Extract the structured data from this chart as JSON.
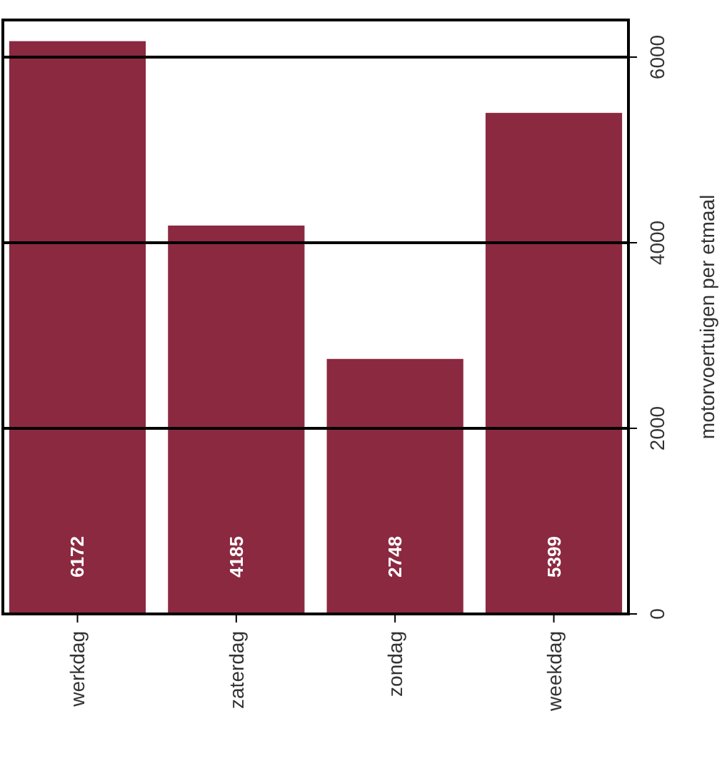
{
  "chart_data": {
    "type": "bar",
    "ylabel": "motorvoertuigen per etmaal",
    "categories": [
      "werkdag",
      "zaterdag",
      "zondag",
      "weekdag"
    ],
    "values": [
      6172,
      4185,
      2748,
      5399
    ],
    "color": "#8b2940",
    "ylim": [
      0,
      6400
    ],
    "yticks": [
      0,
      2000,
      4000,
      6000
    ],
    "grid": "y",
    "data_labels": true
  }
}
